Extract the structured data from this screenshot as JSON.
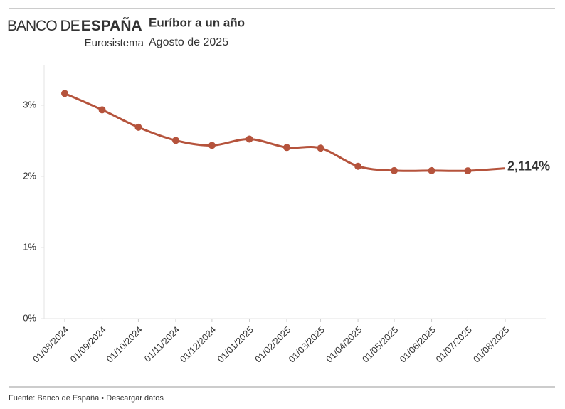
{
  "header": {
    "logo_light": "BANCO DE",
    "logo_bold": "ESPAÑA",
    "logo_sub": "Eurosistema"
  },
  "chart_data": {
    "type": "line",
    "title": "Euríbor a un año",
    "subtitle": "Agosto de 2025",
    "x": [
      "01/08/2024",
      "01/09/2024",
      "01/10/2024",
      "01/11/2024",
      "01/12/2024",
      "01/01/2025",
      "01/02/2025",
      "01/03/2025",
      "01/04/2025",
      "01/05/2025",
      "01/06/2025",
      "01/07/2025",
      "01/08/2025"
    ],
    "xticks": [
      "01/08/2024",
      "01/09/2024",
      "01/10/2024",
      "01/11/2024",
      "01/12/2024",
      "01/01/2025",
      "01/02/2025",
      "01/03/2025",
      "01/04/2025",
      "01/05/2025",
      "01/06/2025",
      "01/07/2025",
      "01/08/2025"
    ],
    "series": [
      {
        "name": "Euríbor a un año",
        "color": "#b5533c",
        "values": [
          3.166,
          2.936,
          2.691,
          2.506,
          2.436,
          2.525,
          2.407,
          2.398,
          2.143,
          2.081,
          2.081,
          2.079,
          2.114
        ],
        "value_labels": [
          null,
          null,
          null,
          null,
          null,
          null,
          null,
          null,
          null,
          null,
          null,
          null,
          "2,114%"
        ]
      }
    ],
    "ylim": [
      0,
      3.56
    ],
    "yticks": [
      {
        "value": 0,
        "label": "0%"
      },
      {
        "value": 1,
        "label": "1%"
      },
      {
        "value": 2,
        "label": "2%"
      },
      {
        "value": 3,
        "label": "3%"
      }
    ]
  },
  "footer": {
    "source": "Fuente: Banco de España",
    "separator": "•",
    "link": "Descargar datos"
  }
}
